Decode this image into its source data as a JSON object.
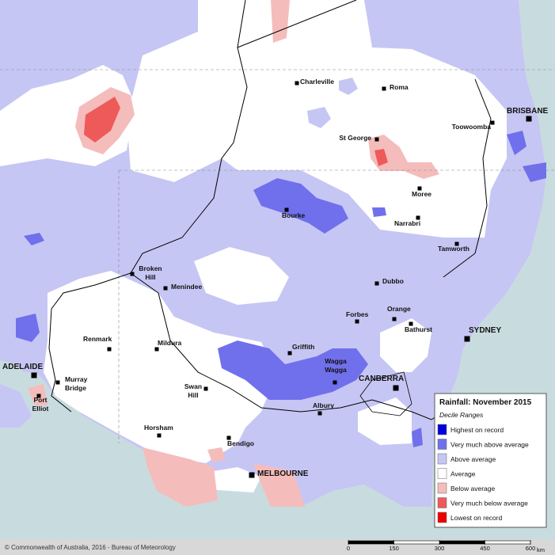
{
  "towns": [
    {
      "lines": [
        "Charleville"
      ]
    },
    {
      "lines": [
        "Roma"
      ]
    },
    {
      "lines": [
        "BRISBANE"
      ],
      "capital": true
    },
    {
      "lines": [
        "Toowoomba"
      ]
    },
    {
      "lines": [
        "St George"
      ]
    },
    {
      "lines": [
        "Moree"
      ]
    },
    {
      "lines": [
        "Bourke"
      ]
    },
    {
      "lines": [
        "Narrabri"
      ]
    },
    {
      "lines": [
        "Tamworth"
      ]
    },
    {
      "lines": [
        "Broken",
        "Hill"
      ]
    },
    {
      "lines": [
        "Menindee"
      ]
    },
    {
      "lines": [
        "Dubbo"
      ]
    },
    {
      "lines": [
        "Orange"
      ]
    },
    {
      "lines": [
        "Forbes"
      ]
    },
    {
      "lines": [
        "Bathurst"
      ]
    },
    {
      "lines": [
        "SYDNEY"
      ],
      "capital": true
    },
    {
      "lines": [
        "Renmark"
      ]
    },
    {
      "lines": [
        "Mildura"
      ]
    },
    {
      "lines": [
        "Griffith"
      ]
    },
    {
      "lines": [
        "Wagga",
        "Wagga"
      ]
    },
    {
      "lines": [
        "ADELAIDE"
      ],
      "capital": true
    },
    {
      "lines": [
        "CANBERRA"
      ],
      "capital": true
    },
    {
      "lines": [
        "Murray",
        "Bridge"
      ]
    },
    {
      "lines": [
        "Swan",
        "Hill"
      ]
    },
    {
      "lines": [
        "Port",
        "Elliot"
      ]
    },
    {
      "lines": [
        "Albury"
      ]
    },
    {
      "lines": [
        "Horsham"
      ]
    },
    {
      "lines": [
        "Bendigo"
      ]
    },
    {
      "lines": [
        "MELBOURNE"
      ],
      "capital": true
    }
  ],
  "legend": {
    "title": "Rainfall: November 2015",
    "subtitle": "Decile Ranges",
    "items": [
      {
        "label": "Highest on record",
        "color": "#0000dd"
      },
      {
        "label": "Very much above average",
        "color": "#7070ec"
      },
      {
        "label": "Above average",
        "color": "#c6c6f4"
      },
      {
        "label": "Average",
        "color": "#ffffff"
      },
      {
        "label": "Below average",
        "color": "#f5bcbc"
      },
      {
        "label": "Very much below average",
        "color": "#ee5a5a"
      },
      {
        "label": "Lowest on record",
        "color": "#ee0000"
      }
    ]
  },
  "footer": {
    "copyright": "© Commonwealth of Australia, 2016 - Bureau of Meteorology",
    "scale": {
      "ticks": [
        0,
        150,
        300,
        450,
        600
      ],
      "unit": "km"
    }
  }
}
